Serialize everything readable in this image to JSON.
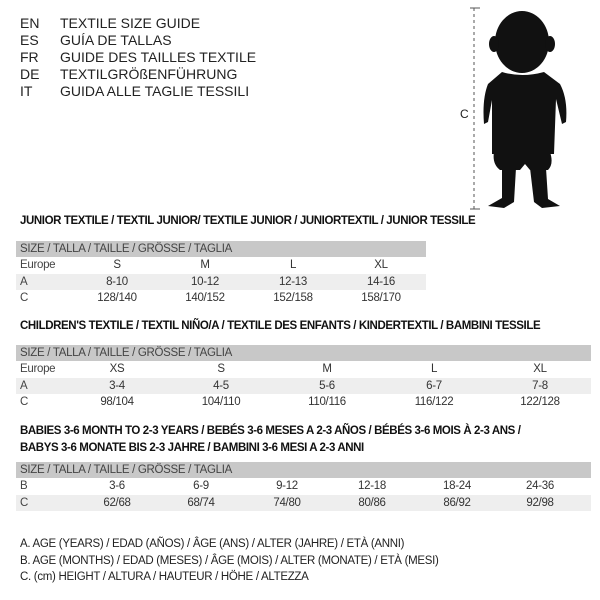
{
  "header": {
    "languages": [
      {
        "code": "EN",
        "text": "TEXTILE SIZE GUIDE"
      },
      {
        "code": "ES",
        "text": "GUÍA DE TALLAS"
      },
      {
        "code": "FR",
        "text": "GUIDE DES TAILLES TEXTILE"
      },
      {
        "code": "DE",
        "text": "TEXTILGRÖßENFÜHRUNG"
      },
      {
        "code": "IT",
        "text": "GUIDA ALLE TAGLIE TESSILI"
      }
    ]
  },
  "figure": {
    "measure_label": "C",
    "icon": "baby-silhouette"
  },
  "junior": {
    "title": "JUNIOR TEXTILE / TEXTIL JUNIOR/ TEXTILE JUNIOR / JUNIORTEXTIL / JUNIOR TESSILE",
    "header": "SIZE / TALLA / TAILLE / GRÖSSE / TAGLIA",
    "rows": [
      {
        "label": "Europe",
        "cells": [
          "S",
          "M",
          "L",
          "XL"
        ]
      },
      {
        "label": "A",
        "cells": [
          "8-10",
          "10-12",
          "12-13",
          "14-16"
        ]
      },
      {
        "label": "C",
        "cells": [
          "128/140",
          "140/152",
          "152/158",
          "158/170"
        ]
      }
    ]
  },
  "children": {
    "title": "CHILDREN'S TEXTILE / TEXTIL NIÑO/A / TEXTILE DES ENFANTS / KINDERTEXTIL / BAMBINI TESSILE",
    "header": "SIZE / TALLA / TAILLE / GRÖSSE / TAGLIA",
    "rows": [
      {
        "label": "Europe",
        "cells": [
          "XS",
          "S",
          "M",
          "L",
          "XL"
        ]
      },
      {
        "label": "A",
        "cells": [
          "3-4",
          "4-5",
          "5-6",
          "6-7",
          "7-8"
        ]
      },
      {
        "label": "C",
        "cells": [
          "98/104",
          "104/110",
          "110/116",
          "116/122",
          "122/128"
        ]
      }
    ]
  },
  "babies": {
    "title_line1": "BABIES 3-6 MONTH TO 2-3 YEARS / BEBÉS 3-6 MESES A 2-3 AÑOS / BÉBÉS 3-6 MOIS À 2-3 ANS /",
    "title_line2": "BABYS 3-6 MONATE BIS 2-3 JAHRE / BAMBINI 3-6 MESI A 2-3 ANNI",
    "header": "SIZE / TALLA / TAILLE / GRÖSSE / TAGLIA",
    "rows": [
      {
        "label": "B",
        "cells": [
          "3-6",
          "6-9",
          "9-12",
          "12-18",
          "18-24",
          "24-36"
        ]
      },
      {
        "label": "C",
        "cells": [
          "62/68",
          "68/74",
          "74/80",
          "80/86",
          "86/92",
          "92/98"
        ]
      }
    ]
  },
  "notes": [
    "A. AGE (YEARS) / EDAD (AÑOS) / ÂGE (ANS) / ALTER (JAHRE) / ETÀ (ANNI)",
    "B. AGE (MONTHS) / EDAD (MESES) / ÂGE (MOIS) / ALTER (MONATE) / ETÀ (MESI)",
    "C. (cm) HEIGHT / ALTURA / HAUTEUR / HÖHE / ALTEZZA"
  ]
}
